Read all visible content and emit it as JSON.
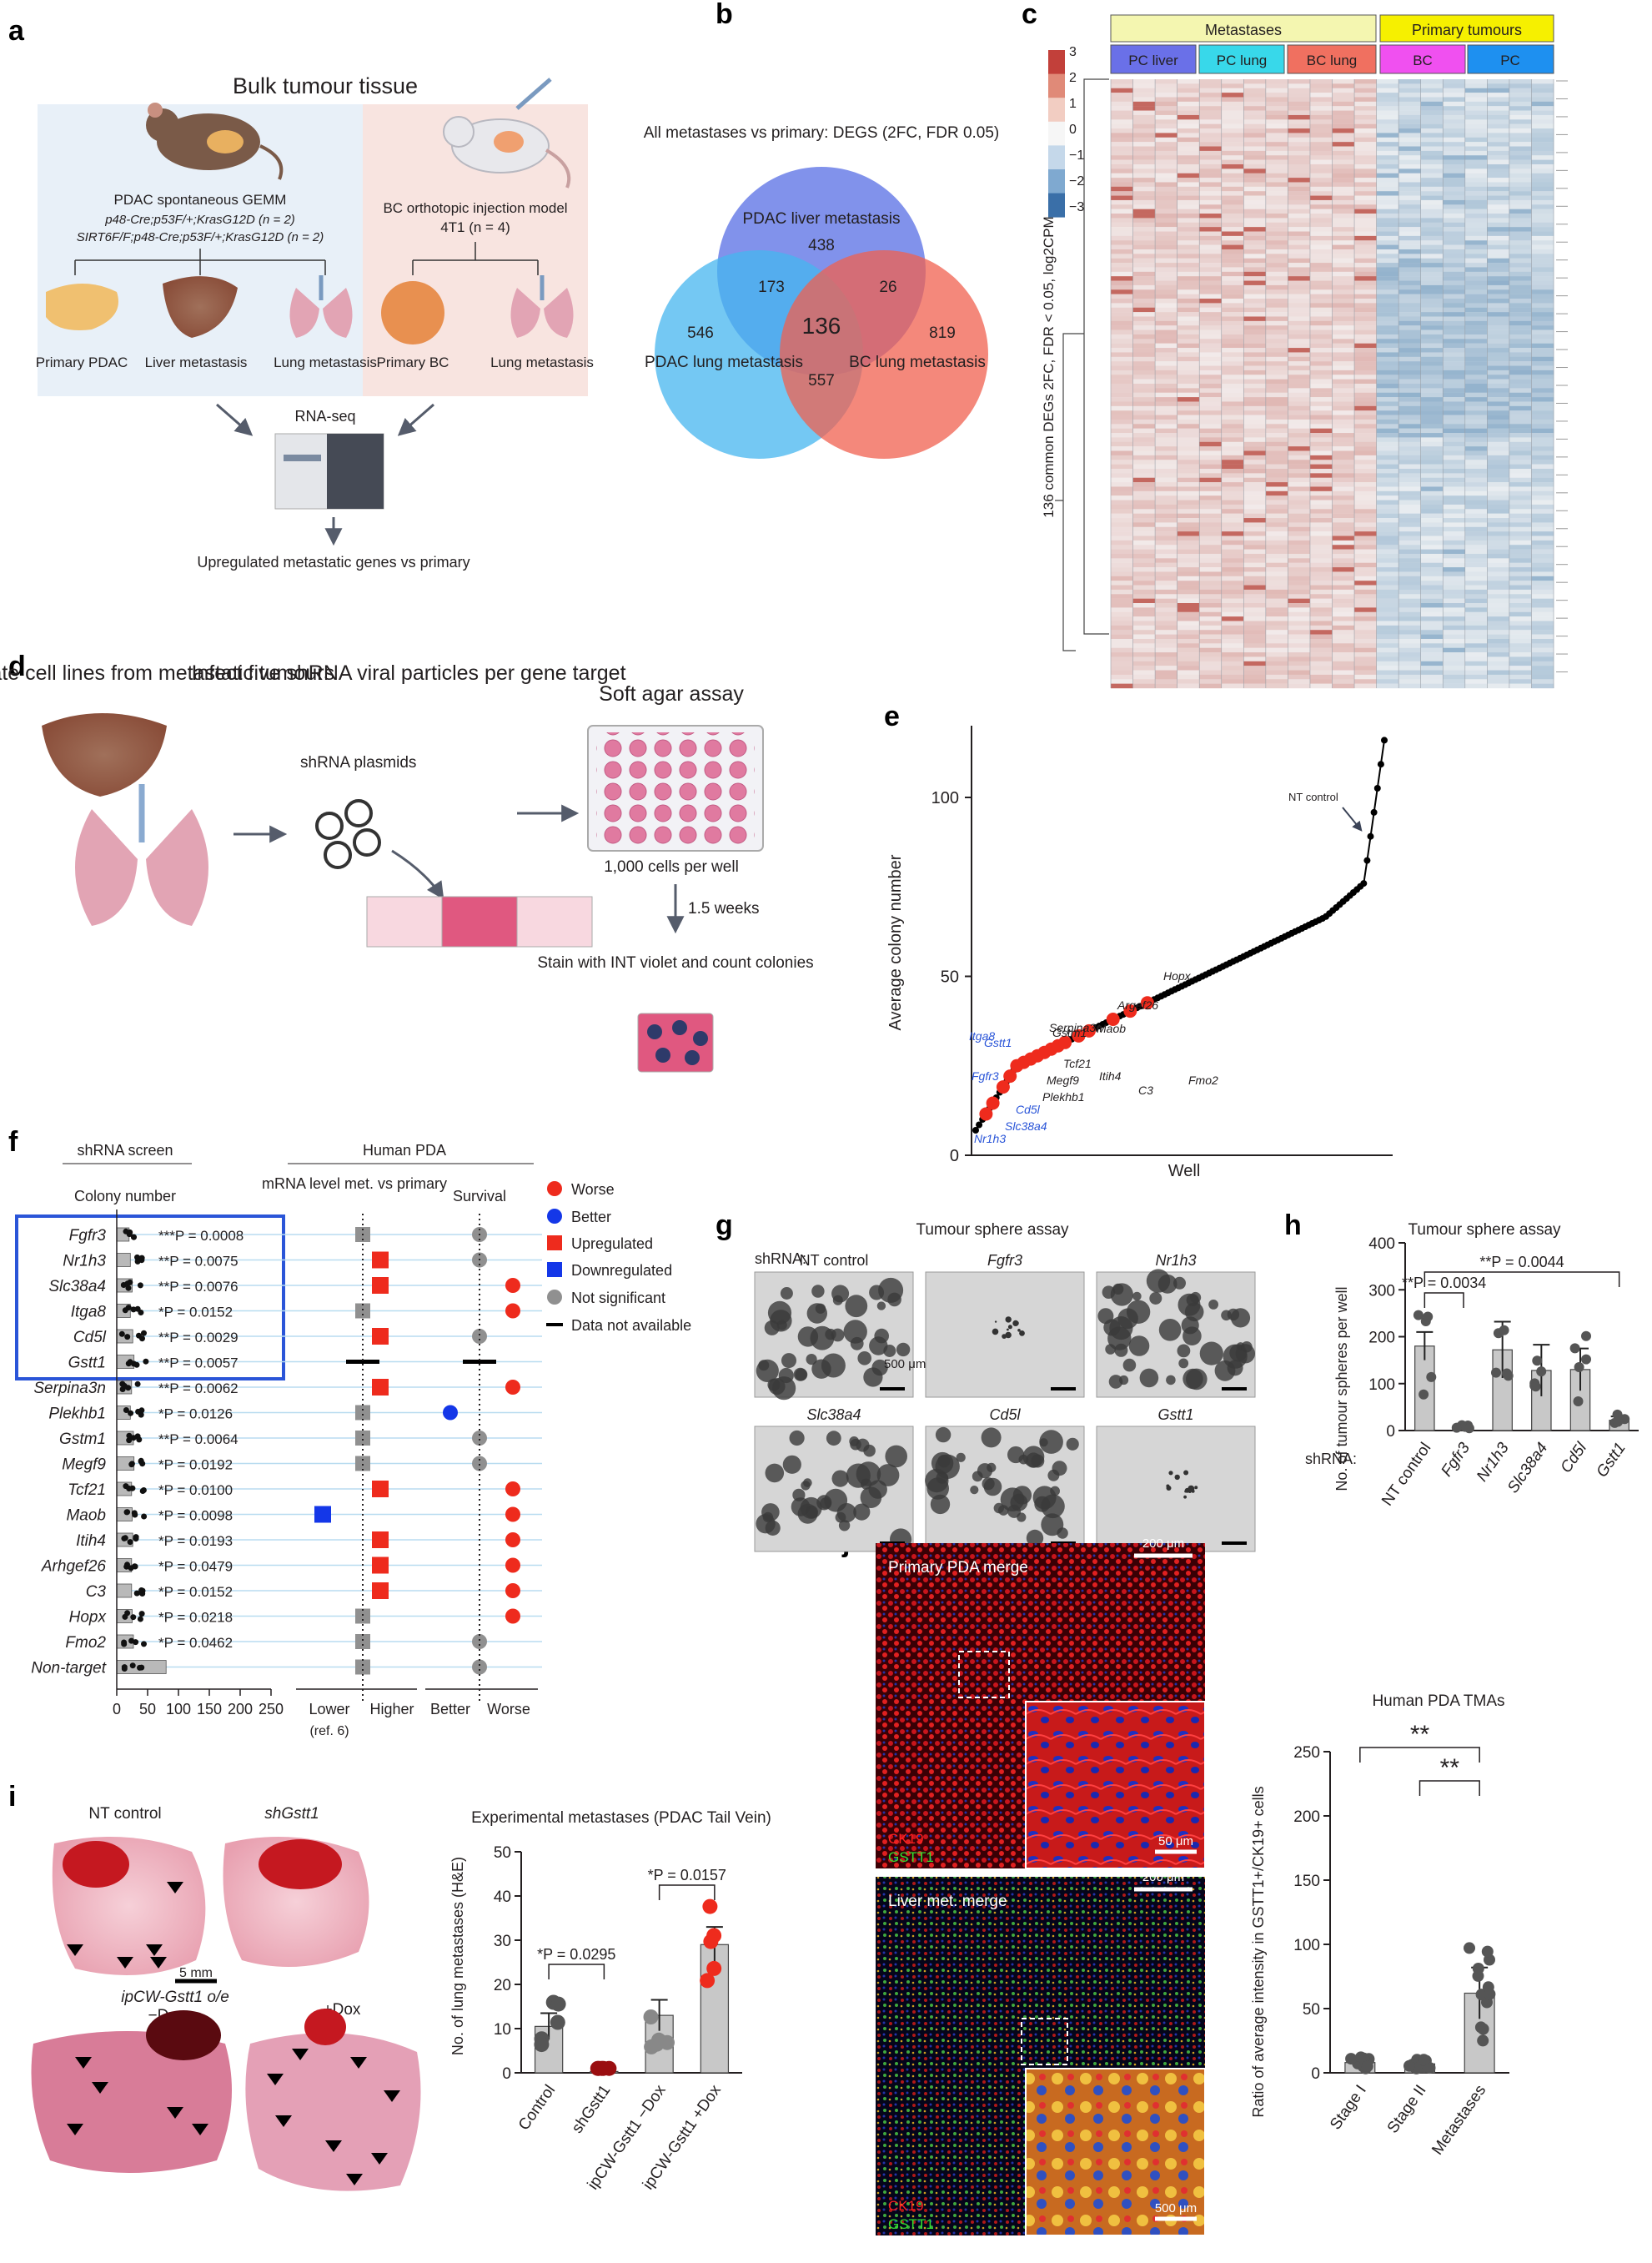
{
  "panels": [
    "a",
    "b",
    "c",
    "d",
    "e",
    "f",
    "g",
    "h",
    "i",
    "j"
  ],
  "a": {
    "title": "Bulk tumour tissue",
    "model1": "PDAC spontaneous GEMM",
    "model1_line1": "p48-Cre;p53F/+;KrasG12D (n = 2)",
    "model1_line2": "SIRT6F/F;p48-Cre;p53F/+;KrasG12D (n = 2)",
    "model2": "BC orthotopic injection model",
    "model2_line": "4T1 (n = 4)",
    "tissues": [
      "Primary PDAC",
      "Liver metastasis",
      "Lung metastasis",
      "Primary BC",
      "Lung metastasis"
    ],
    "method": "RNA-seq",
    "result": "Upregulated metastatic genes vs primary"
  },
  "b": {
    "title": "All metastases vs primary: DEGS (2FC, FDR 0.05)",
    "sets": [
      "PDAC liver metastasis",
      "PDAC lung metastasis",
      "BC lung metastasis"
    ],
    "counts": {
      "liver_only": "438",
      "lung_only": "546",
      "bc_only": "819",
      "liver_lung": "173",
      "liver_bc": "26",
      "lung_bc": "557",
      "all": "136"
    },
    "colors": {
      "liver": "#6b7fe8",
      "lung": "#45b5ef",
      "bc": "#f0604f"
    }
  },
  "c": {
    "group_top": [
      "Metastases",
      "Primary tumours"
    ],
    "group_sub": [
      "PC liver",
      "PC lung",
      "BC lung",
      "BC",
      "PC"
    ],
    "legend_ticks": [
      "3",
      "2",
      "1",
      "0",
      "−1",
      "−2",
      "−3"
    ],
    "ylabel": "136 common DEGs 2FC, FDR < 0.05, log2CPM"
  },
  "d": {
    "step1": "Generate cell lines from metastatic tumours",
    "step2": "Infect five shRNA viral particles per gene target",
    "step3": "Soft agar assay",
    "plasmid": "shRNA plasmids",
    "cells": "1,000 cells per well",
    "time": "1.5 weeks",
    "stain": "Stain with INT violet and count colonies"
  },
  "chart_data": [
    {
      "panel": "e",
      "type": "scatter",
      "xlabel": "Well",
      "ylabel": "Average colony number",
      "ylim": [
        0,
        120
      ],
      "yticks": [
        "0",
        "50",
        "100"
      ],
      "annotation": "NT control",
      "highlight_genes": [
        "Hopx",
        "Argef26",
        "Maob",
        "Serpina3n",
        "Gstm1",
        "Gstt1",
        "Itga8",
        "Fgfr3",
        "Cd5l",
        "Slc38a4",
        "Nr1h3",
        "Plekhb1",
        "Megf9",
        "Tcf21",
        "Itih4",
        "C3",
        "Fmo2"
      ]
    },
    {
      "panel": "f",
      "type": "bar",
      "title": "shRNA screen",
      "subtitle": "Colony number",
      "genes": [
        "Fgfr3",
        "Nr1h3",
        "Slc38a4",
        "Itga8",
        "Cd5l",
        "Gstt1",
        "Serpina3n",
        "Plekhb1",
        "Gstm1",
        "Megf9",
        "Tcf21",
        "Maob",
        "Itih4",
        "Arhgef26",
        "C3",
        "Hopx",
        "Fmo2",
        "Non-target"
      ],
      "values": [
        20,
        22,
        25,
        22,
        26,
        28,
        24,
        22,
        27,
        28,
        24,
        25,
        26,
        24,
        24,
        25,
        27,
        80
      ],
      "pvalues": [
        "***P = 0.0008",
        "**P = 0.0075",
        "**P = 0.0076",
        "*P = 0.0152",
        "**P = 0.0029",
        "**P = 0.0057",
        "**P = 0.0062",
        "*P = 0.0126",
        "**P = 0.0064",
        "*P = 0.0192",
        "*P = 0.0100",
        "*P = 0.0098",
        "*P = 0.0193",
        "*P = 0.0479",
        "*P = 0.0152",
        "*P = 0.0218",
        "*P = 0.0462",
        ""
      ],
      "xticks": [
        "0",
        "50",
        "100",
        "150",
        "200",
        "250"
      ],
      "human_title": "Human PDA",
      "col1": "mRNA level met. vs primary",
      "col2": "Survival",
      "mrna": [
        "ns",
        "up",
        "up",
        "ns",
        "up",
        "na",
        "up",
        "ns",
        "ns",
        "ns",
        "up",
        "down",
        "up",
        "up",
        "up",
        "ns",
        "ns",
        "ns"
      ],
      "survival": [
        "ns",
        "ns",
        "worse",
        "worse",
        "ns",
        "na",
        "worse",
        "better",
        "ns",
        "ns",
        "worse",
        "worse",
        "worse",
        "worse",
        "worse",
        "worse",
        "ns",
        "ns"
      ],
      "axis_left": [
        "Lower",
        "Higher",
        "Better",
        "Worse"
      ],
      "ref": "(ref. 6)",
      "legend": [
        "Worse",
        "Better",
        "Upregulated",
        "Downregulated",
        "Not significant",
        "Data not available"
      ]
    },
    {
      "panel": "h",
      "type": "bar",
      "title": "Tumour sphere assay",
      "ylabel": "No. of tumour spheres per well",
      "categories": [
        "NT control",
        "Fgfr3",
        "Nr1h3",
        "Slc38a4",
        "Cd5l",
        "Gstt1"
      ],
      "values": [
        180,
        8,
        172,
        128,
        130,
        22
      ],
      "ylim": [
        0,
        400
      ],
      "yticks": [
        "0",
        "100",
        "200",
        "300",
        "400"
      ],
      "sig": [
        "**P = 0.0034",
        "**P = 0.0044"
      ],
      "xprefix": "shRNA:"
    },
    {
      "panel": "i",
      "type": "bar",
      "title": "Experimental metastases (PDAC Tail Vein)",
      "ylabel": "No. of lung metastases (H&E)",
      "categories": [
        "Control",
        "shGstt1",
        "ipCW-Gstt1 −Dox",
        "ipCW-Gstt1 +Dox"
      ],
      "values": [
        10.5,
        0.3,
        13,
        29
      ],
      "ylim": [
        0,
        50
      ],
      "yticks": [
        "0",
        "10",
        "20",
        "30",
        "40",
        "50"
      ],
      "sig": [
        "*P = 0.0295",
        "*P = 0.0157"
      ]
    },
    {
      "panel": "j",
      "type": "bar",
      "title": "Human PDA TMAs",
      "ylabel": "Ratio of average intensity in GSTT1+/CK19+ cells",
      "categories": [
        "Stage I",
        "Stage II",
        "Metastases"
      ],
      "values": [
        8,
        7,
        62
      ],
      "ylim": [
        0,
        250
      ],
      "yticks": [
        "0",
        "50",
        "100",
        "150",
        "200",
        "250"
      ],
      "sig": [
        "**",
        "**"
      ]
    }
  ],
  "g": {
    "title": "Tumour sphere assay",
    "prefix": "shRNA:",
    "labels": [
      "NT control",
      "Fgfr3",
      "Nr1h3",
      "Slc38a4",
      "Cd5l",
      "Gstt1"
    ],
    "scale": "500 μm"
  },
  "i_img": {
    "labels": [
      "NT control",
      "shGstt1",
      "ipCW-Gstt1 o/e",
      "−Dox",
      "+Dox"
    ],
    "scale": "5 mm"
  },
  "j_img": {
    "top": "Primary PDA merge",
    "bottom": "Liver met. merge",
    "scale_big": "200 μm",
    "scale_small1": "50 μm",
    "scale_small2": "500 μm",
    "ch1": "CK19",
    "ch2": "GSTT1"
  }
}
